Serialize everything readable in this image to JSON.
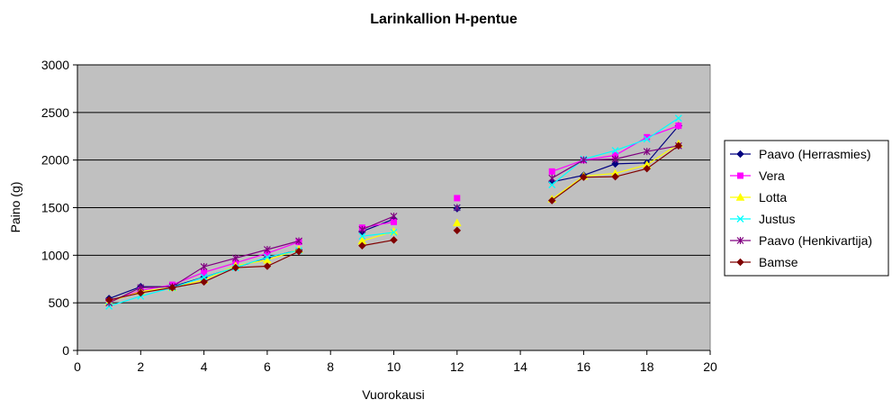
{
  "chart_data": {
    "type": "line",
    "title": "Larinkallion H-pentue",
    "xlabel": "Vuorokausi",
    "ylabel": "Paino (g)",
    "xlim": [
      0,
      20
    ],
    "ylim": [
      0,
      3000
    ],
    "xticks": [
      0,
      2,
      4,
      6,
      8,
      10,
      12,
      14,
      16,
      18,
      20
    ],
    "yticks": [
      0,
      500,
      1000,
      1500,
      2000,
      2500,
      3000
    ],
    "grid": "horizontal",
    "legend_position": "right",
    "plot_background": "#c0c0c0",
    "x": [
      1,
      2,
      3,
      4,
      5,
      6,
      7,
      9,
      10,
      12,
      15,
      16,
      17,
      18,
      19
    ],
    "series": [
      {
        "name": "Paavo (Herrasmies)",
        "color": "#000080",
        "marker": "diamond",
        "values": [
          545,
          670,
          670,
          770,
          870,
          975,
          1055,
          1250,
          1380,
          1490,
          1770,
          1840,
          1960,
          1970,
          2360
        ]
      },
      {
        "name": "Vera",
        "color": "#ff00ff",
        "marker": "square",
        "values": [
          515,
          630,
          690,
          820,
          920,
          1020,
          1140,
          1290,
          1350,
          1600,
          1880,
          2000,
          2050,
          2240,
          2360
        ]
      },
      {
        "name": "Lotta",
        "color": "#ffff00",
        "marker": "triangle",
        "values": [
          510,
          620,
          660,
          740,
          890,
          950,
          1060,
          1150,
          1250,
          1340,
          1590,
          1830,
          1860,
          1950,
          2170
        ]
      },
      {
        "name": "Justus",
        "color": "#00ffff",
        "marker": "x",
        "values": [
          465,
          570,
          660,
          770,
          870,
          980,
          1050,
          1200,
          1240,
          1500,
          1740,
          2010,
          2100,
          2220,
          2440
        ]
      },
      {
        "name": "Paavo (Henkivartija)",
        "color": "#800080",
        "marker": "star",
        "values": [
          500,
          660,
          670,
          880,
          970,
          1060,
          1150,
          1270,
          1410,
          1500,
          1810,
          2000,
          2010,
          2090,
          2150
        ]
      },
      {
        "name": "Bamse",
        "color": "#800000",
        "marker": "diamond",
        "values": [
          530,
          605,
          660,
          720,
          870,
          885,
          1040,
          1100,
          1160,
          1260,
          1575,
          1820,
          1825,
          1910,
          2150
        ]
      }
    ]
  }
}
